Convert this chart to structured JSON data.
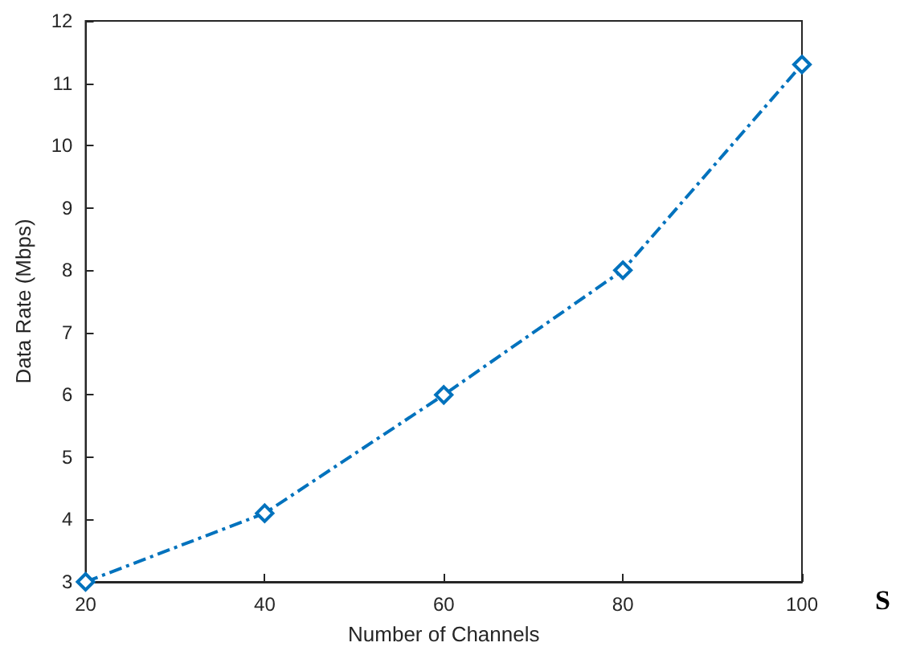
{
  "chart_data": {
    "type": "line",
    "xlabel": "Number of Channels",
    "ylabel": "Data Rate (Mbps)",
    "x": [
      20,
      40,
      60,
      80,
      100
    ],
    "series": [
      {
        "color": "#0072bd",
        "values": [
          3,
          4.1,
          6,
          8,
          11.3
        ]
      }
    ],
    "xlim": [
      20,
      100
    ],
    "xticks": [
      20,
      40,
      60,
      80,
      100
    ],
    "ylim": [
      3,
      12
    ],
    "yticks": [
      3,
      4,
      5,
      6,
      7,
      8,
      9,
      10,
      11,
      12
    ],
    "grid": false,
    "marker": "diamond",
    "line_style": "dashed",
    "annotations": [
      "S"
    ]
  }
}
